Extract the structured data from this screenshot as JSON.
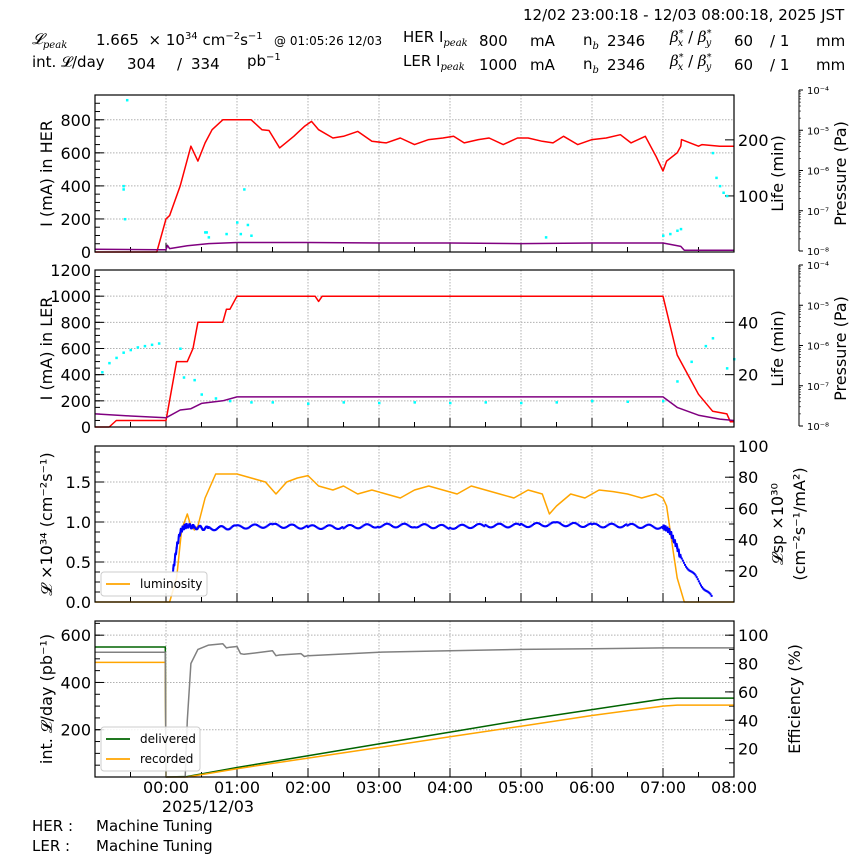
{
  "header": {
    "time_range": "12/02 23:00:18 - 12/03 08:00:18, 2025 JST",
    "lpeak_label": "𝓛",
    "lpeak_sub": "peak",
    "lpeak_value": "1.665",
    "lpeak_unit_mult": "× 10",
    "lpeak_unit_exp": "34",
    "lpeak_unit": "cm",
    "lpeak_unit_cm_exp": "−2",
    "lpeak_unit_s": "s",
    "lpeak_unit_s_exp": "−1",
    "lpeak_time": "@ 01:05:26 12/03",
    "intl_label": "int. 𝓛/day",
    "intl_delivered": "304",
    "intl_sep": "/",
    "intl_total": "334",
    "intl_unit": "pb",
    "intl_unit_exp": "−1",
    "her": {
      "label": "HER I",
      "sub": "peak",
      "current": "800",
      "unit": "mA",
      "nb_label": "n",
      "nb_sub": "b",
      "nb": "2346",
      "beta_label": "β*x / β*y",
      "beta_x": "60",
      "beta_y": "/ 1",
      "beta_unit": "mm"
    },
    "ler": {
      "label": "LER I",
      "sub": "peak",
      "current": "1000",
      "unit": "mA",
      "nb_label": "n",
      "nb_sub": "b",
      "nb": "2346",
      "beta_label": "β*x / β*y",
      "beta_x": "60",
      "beta_y": "/ 1",
      "beta_unit": "mm"
    }
  },
  "footer": {
    "her_label": "HER :",
    "her_status": "Machine Tuning",
    "ler_label": "LER :",
    "ler_status": "Machine Tuning"
  },
  "colors": {
    "current": "#ff0000",
    "life": "#800080",
    "pressure": "#00ffff",
    "luminosity": "#ffa500",
    "specific_lumi": "#0000ff",
    "delivered": "#006400",
    "recorded": "#ffa500",
    "efficiency": "#808080",
    "grid": "#b0b0b0"
  },
  "chart_data": [
    {
      "type": "line",
      "title": "HER",
      "xlabel": "",
      "ylabel": "I (mA) in HER",
      "ylabel_right": "Life (min)",
      "ylabel_right2": "Pressure (Pa)",
      "x_hours_range": [
        -1,
        8
      ],
      "ylim": [
        0,
        950
      ],
      "yticks": [
        0,
        200,
        400,
        600,
        800
      ],
      "ylim_right": [
        0,
        280
      ],
      "yticks_right": [
        100,
        200
      ],
      "pressure_ticks": [
        "10⁻⁸",
        "10⁻⁷",
        "10⁻⁶",
        "10⁻⁵",
        "10⁻⁴"
      ],
      "series": [
        {
          "name": "HER current (mA)",
          "axis": "left",
          "color": "#ff0000",
          "x": [
            -1,
            -0.13,
            0.0,
            0.05,
            0.2,
            0.35,
            0.45,
            0.55,
            0.65,
            0.8,
            0.9,
            1.2,
            1.35,
            1.45,
            1.6,
            1.8,
            1.95,
            2.05,
            2.15,
            2.35,
            2.5,
            2.7,
            2.9,
            3.1,
            3.3,
            3.5,
            3.7,
            3.9,
            4.05,
            4.2,
            4.4,
            4.55,
            4.75,
            4.95,
            5.1,
            5.3,
            5.45,
            5.6,
            5.8,
            6.0,
            6.2,
            6.4,
            6.55,
            6.75,
            6.9,
            7.0,
            7.05,
            7.2,
            7.25,
            7.26,
            7.5,
            7.55,
            7.8,
            8
          ],
          "y": [
            0,
            0,
            200,
            220,
            400,
            640,
            550,
            660,
            740,
            800,
            800,
            800,
            740,
            735,
            630,
            700,
            760,
            790,
            740,
            690,
            700,
            730,
            670,
            660,
            690,
            650,
            680,
            690,
            700,
            660,
            680,
            690,
            650,
            690,
            690,
            670,
            660,
            700,
            650,
            680,
            690,
            710,
            660,
            700,
            580,
            490,
            550,
            600,
            640,
            680,
            640,
            650,
            640,
            640
          ]
        },
        {
          "name": "HER lifetime (min)",
          "axis": "right",
          "color": "#800080",
          "x": [
            -1,
            -0.1,
            0.0,
            0.02,
            0.05,
            0.3,
            0.6,
            1.0,
            2.0,
            3.0,
            4.0,
            5.0,
            6.0,
            7.0,
            7.25,
            7.3,
            8
          ],
          "y": [
            5,
            4,
            4,
            12,
            6,
            11,
            15,
            17,
            17,
            16,
            16,
            15,
            16,
            16,
            10,
            3,
            3
          ]
        },
        {
          "name": "HER pressure (Pa)",
          "axis": "right2",
          "color": "#00ffff",
          "type": "scatter",
          "x": [
            -0.6,
            -0.6,
            -0.58,
            -0.55,
            0.55,
            0.57,
            0.6,
            0.85,
            1.0,
            1.05,
            1.1,
            1.15,
            1.2,
            5.35,
            7.0,
            7.1,
            7.2,
            7.25,
            7.7,
            7.75,
            7.8,
            7.85,
            7.9
          ],
          "y": [
            400,
            380,
            200,
            920,
            120,
            120,
            90,
            110,
            180,
            110,
            380,
            165,
            100,
            90,
            100,
            110,
            130,
            140,
            600,
            450,
            400,
            360,
            340
          ]
        }
      ]
    },
    {
      "type": "line",
      "title": "LER",
      "xlabel": "",
      "ylabel": "I (mA) in LER",
      "ylabel_right": "Life (min)",
      "ylabel_right2": "Pressure (Pa)",
      "x_hours_range": [
        -1,
        8
      ],
      "ylim": [
        0,
        1200
      ],
      "yticks": [
        0,
        200,
        400,
        600,
        800,
        1000,
        1200
      ],
      "ylim_right": [
        0,
        60
      ],
      "yticks_right": [
        20,
        40
      ],
      "pressure_ticks": [
        "10⁻⁸",
        "10⁻⁷",
        "10⁻⁶",
        "10⁻⁵",
        "10⁻⁴"
      ],
      "series": [
        {
          "name": "LER current (mA)",
          "axis": "left",
          "color": "#ff0000",
          "x": [
            -1,
            -0.8,
            -0.7,
            -0.1,
            0.0,
            0.15,
            0.3,
            0.38,
            0.45,
            0.55,
            0.6,
            0.8,
            0.85,
            0.9,
            1.0,
            1.05,
            1.1,
            2.1,
            2.15,
            2.2,
            7.0,
            7.2,
            7.5,
            7.7,
            7.9,
            7.95,
            8
          ],
          "y": [
            0,
            0,
            50,
            50,
            50,
            500,
            500,
            600,
            800,
            800,
            800,
            800,
            900,
            900,
            1000,
            1000,
            1000,
            1000,
            960,
            1000,
            1000,
            550,
            250,
            120,
            100,
            40,
            40
          ]
        },
        {
          "name": "LER lifetime (min)",
          "axis": "right",
          "color": "#800080",
          "x": [
            -1,
            -0.5,
            0.0,
            0.2,
            0.35,
            0.5,
            0.8,
            1.0,
            2.0,
            3.0,
            4.0,
            5.0,
            6.0,
            7.0,
            7.2,
            7.5,
            7.8,
            8
          ],
          "y": [
            5,
            4.2,
            3.5,
            6.5,
            7,
            9,
            10,
            11.5,
            11.5,
            11.5,
            11.5,
            11.5,
            11.5,
            11.5,
            7.5,
            4.5,
            3,
            2.5
          ]
        },
        {
          "name": "LER pressure (Pa)",
          "axis": "right2",
          "color": "#00ffff",
          "type": "scatter",
          "x": [
            -0.9,
            -0.8,
            -0.7,
            -0.6,
            -0.5,
            -0.4,
            -0.3,
            -0.2,
            -0.1,
            0.2,
            0.25,
            0.4,
            0.5,
            0.7,
            0.9,
            1.2,
            1.5,
            2.0,
            2.5,
            3.0,
            3.5,
            4.0,
            4.5,
            5.0,
            5.5,
            6.0,
            6.5,
            7.0,
            7.2,
            7.4,
            7.6,
            7.7,
            7.9,
            8.0
          ],
          "y": [
            420,
            490,
            530,
            570,
            590,
            610,
            620,
            630,
            640,
            600,
            380,
            360,
            250,
            220,
            200,
            190,
            190,
            180,
            190,
            185,
            190,
            185,
            190,
            185,
            190,
            200,
            195,
            200,
            350,
            500,
            620,
            680,
            450,
            520
          ]
        }
      ]
    },
    {
      "type": "line",
      "title": "Luminosity",
      "xlabel": "",
      "ylabel": "𝓛 ×10³⁴ (cm⁻²s⁻¹)",
      "ylabel_right": "𝓛sp ×10³⁰ (cm⁻²s⁻¹/mA²)",
      "x_hours_range": [
        -1,
        8
      ],
      "ylim": [
        0,
        1.95
      ],
      "yticks": [
        0.0,
        0.5,
        1.0,
        1.5
      ],
      "ylim_right": [
        0,
        100
      ],
      "yticks_right": [
        20,
        40,
        60,
        80,
        100
      ],
      "legend": [
        "luminosity"
      ],
      "series": [
        {
          "name": "luminosity",
          "axis": "left",
          "color": "#ffa500",
          "x": [
            -1,
            0.05,
            0.15,
            0.22,
            0.3,
            0.35,
            0.4,
            0.45,
            0.55,
            0.7,
            0.8,
            1.0,
            1.2,
            1.4,
            1.55,
            1.7,
            1.85,
            2.0,
            2.15,
            2.35,
            2.5,
            2.7,
            2.9,
            3.1,
            3.3,
            3.5,
            3.7,
            3.9,
            4.1,
            4.3,
            4.5,
            4.7,
            4.9,
            5.1,
            5.3,
            5.4,
            5.5,
            5.7,
            5.9,
            6.1,
            6.3,
            6.5,
            6.7,
            6.9,
            7.0,
            7.05,
            7.15,
            7.2,
            7.3,
            8
          ],
          "y": [
            0,
            0,
            0.3,
            0.9,
            1.1,
            0.95,
            0.9,
            0.95,
            1.3,
            1.6,
            1.6,
            1.6,
            1.55,
            1.5,
            1.35,
            1.5,
            1.55,
            1.58,
            1.45,
            1.4,
            1.45,
            1.35,
            1.4,
            1.35,
            1.3,
            1.4,
            1.45,
            1.4,
            1.35,
            1.45,
            1.4,
            1.35,
            1.3,
            1.4,
            1.35,
            1.1,
            1.2,
            1.35,
            1.3,
            1.4,
            1.38,
            1.35,
            1.3,
            1.35,
            1.3,
            1.2,
            0.6,
            0.3,
            0.0,
            0.0
          ]
        },
        {
          "name": "specific luminosity",
          "axis": "right",
          "color": "#0000ff",
          "type": "scatter",
          "x": [
            0.1,
            0.15,
            0.2,
            0.25,
            0.3,
            0.4,
            0.6,
            1.0,
            1.5,
            2.0,
            2.5,
            3.0,
            3.5,
            4.0,
            4.5,
            5.0,
            5.5,
            6.0,
            6.5,
            7.0,
            7.05,
            7.1,
            7.15,
            7.2,
            7.25,
            7.7
          ],
          "y": [
            20,
            35,
            45,
            48,
            49,
            48,
            47,
            48,
            49,
            48,
            48,
            49,
            49,
            48,
            49,
            49,
            50,
            49,
            49,
            48,
            47,
            45,
            40,
            35,
            28,
            2
          ]
        }
      ]
    },
    {
      "type": "line",
      "title": "Integrated luminosity",
      "xlabel": "2025/12/03",
      "ylabel": "int. 𝓛/day (pb⁻¹)",
      "ylabel_right": "Efficiency (%)",
      "x_hours_range": [
        -1,
        8
      ],
      "xticks": [
        "00:00",
        "01:00",
        "02:00",
        "03:00",
        "04:00",
        "05:00",
        "06:00",
        "07:00",
        "08:00"
      ],
      "ylim": [
        0,
        660
      ],
      "yticks": [
        200,
        400,
        600
      ],
      "ylim_right": [
        0,
        110
      ],
      "yticks_right": [
        20,
        40,
        60,
        80,
        100
      ],
      "legend": [
        "delivered",
        "recorded"
      ],
      "series": [
        {
          "name": "delivered",
          "axis": "left",
          "color": "#006400",
          "x": [
            -1,
            -0.01,
            0.0,
            0.3,
            1.0,
            2.0,
            3.0,
            4.0,
            5.0,
            6.0,
            7.0,
            7.2,
            8
          ],
          "y": [
            550,
            550,
            0,
            2,
            40,
            90,
            140,
            190,
            240,
            285,
            330,
            334,
            334
          ]
        },
        {
          "name": "recorded",
          "axis": "left",
          "color": "#ffa500",
          "x": [
            -1,
            -0.01,
            0.0,
            0.3,
            1.0,
            2.0,
            3.0,
            4.0,
            5.0,
            6.0,
            7.0,
            7.2,
            8
          ],
          "y": [
            485,
            485,
            0,
            0,
            35,
            80,
            125,
            170,
            215,
            260,
            300,
            304,
            304
          ]
        },
        {
          "name": "efficiency",
          "axis": "right",
          "color": "#808080",
          "x": [
            -1,
            -0.01,
            0.0,
            0.27,
            0.3,
            0.35,
            0.45,
            0.6,
            0.8,
            0.85,
            0.9,
            1.0,
            1.05,
            1.1,
            1.5,
            1.55,
            1.6,
            1.9,
            1.95,
            2.0,
            3.0,
            4.0,
            5.0,
            6.0,
            7.0,
            8
          ],
          "y": [
            88,
            88,
            0,
            0,
            40,
            80,
            90,
            93,
            94,
            91,
            91.5,
            92,
            87,
            86.5,
            89,
            85.5,
            86,
            87,
            85,
            85.5,
            88,
            89,
            90,
            90.5,
            91,
            91
          ]
        }
      ]
    }
  ]
}
